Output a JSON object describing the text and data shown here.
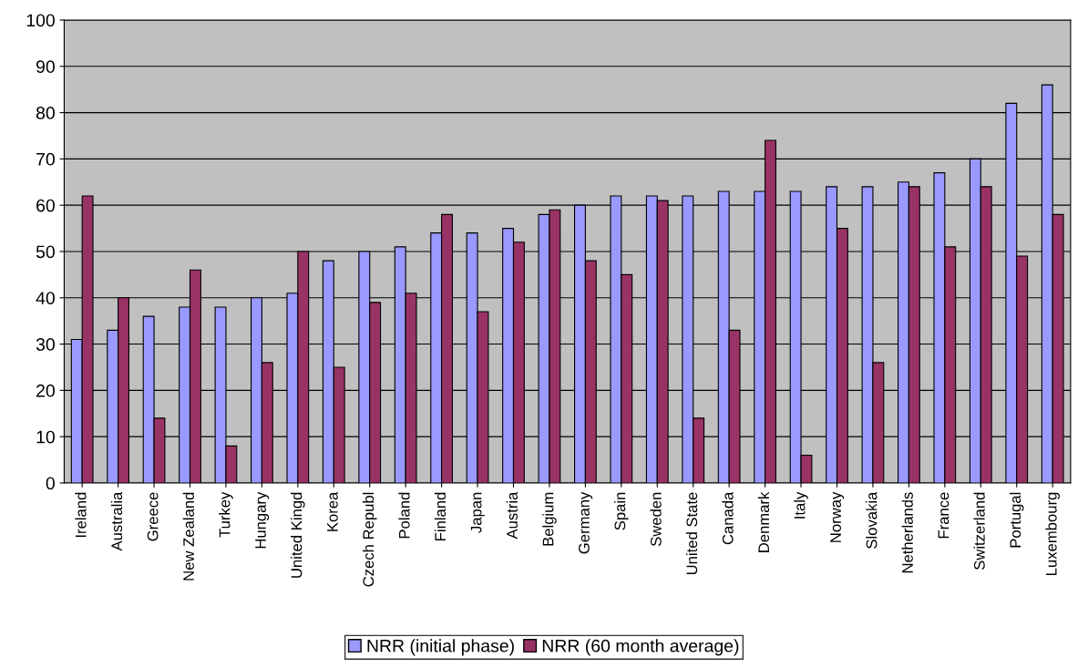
{
  "chart_data": {
    "type": "bar",
    "categories": [
      "Ireland",
      "Australia",
      "Greece",
      "New Zealand",
      "Turkey",
      "Hungary",
      "United Kingd",
      "Korea",
      "Czech Republ",
      "Poland",
      "Finland",
      "Japan",
      "Austria",
      "Belgium",
      "Germany",
      "Spain",
      "Sweden",
      "United State",
      "Canada",
      "Denmark",
      "Italy",
      "Norway",
      "Slovakia",
      "Netherlands",
      "France",
      "Switzerland",
      "Portugal",
      "Luxembourg"
    ],
    "series": [
      {
        "name": "NRR (initial phase)",
        "color": "#9999ff",
        "values": [
          31,
          33,
          36,
          38,
          38,
          40,
          41,
          48,
          50,
          51,
          54,
          54,
          55,
          58,
          60,
          62,
          62,
          62,
          63,
          63,
          63,
          64,
          64,
          65,
          67,
          70,
          82,
          86
        ]
      },
      {
        "name": "NRR (60 month average)",
        "color": "#993366",
        "values": [
          62,
          40,
          14,
          46,
          8,
          26,
          50,
          25,
          39,
          41,
          58,
          37,
          52,
          59,
          48,
          45,
          61,
          14,
          33,
          74,
          6,
          55,
          26,
          64,
          51,
          64,
          49,
          58
        ]
      }
    ],
    "ylim": [
      0,
      100
    ],
    "yticks": [
      0,
      10,
      20,
      30,
      40,
      50,
      60,
      70,
      80,
      90,
      100
    ],
    "grid": "y",
    "legend": "bottom"
  }
}
